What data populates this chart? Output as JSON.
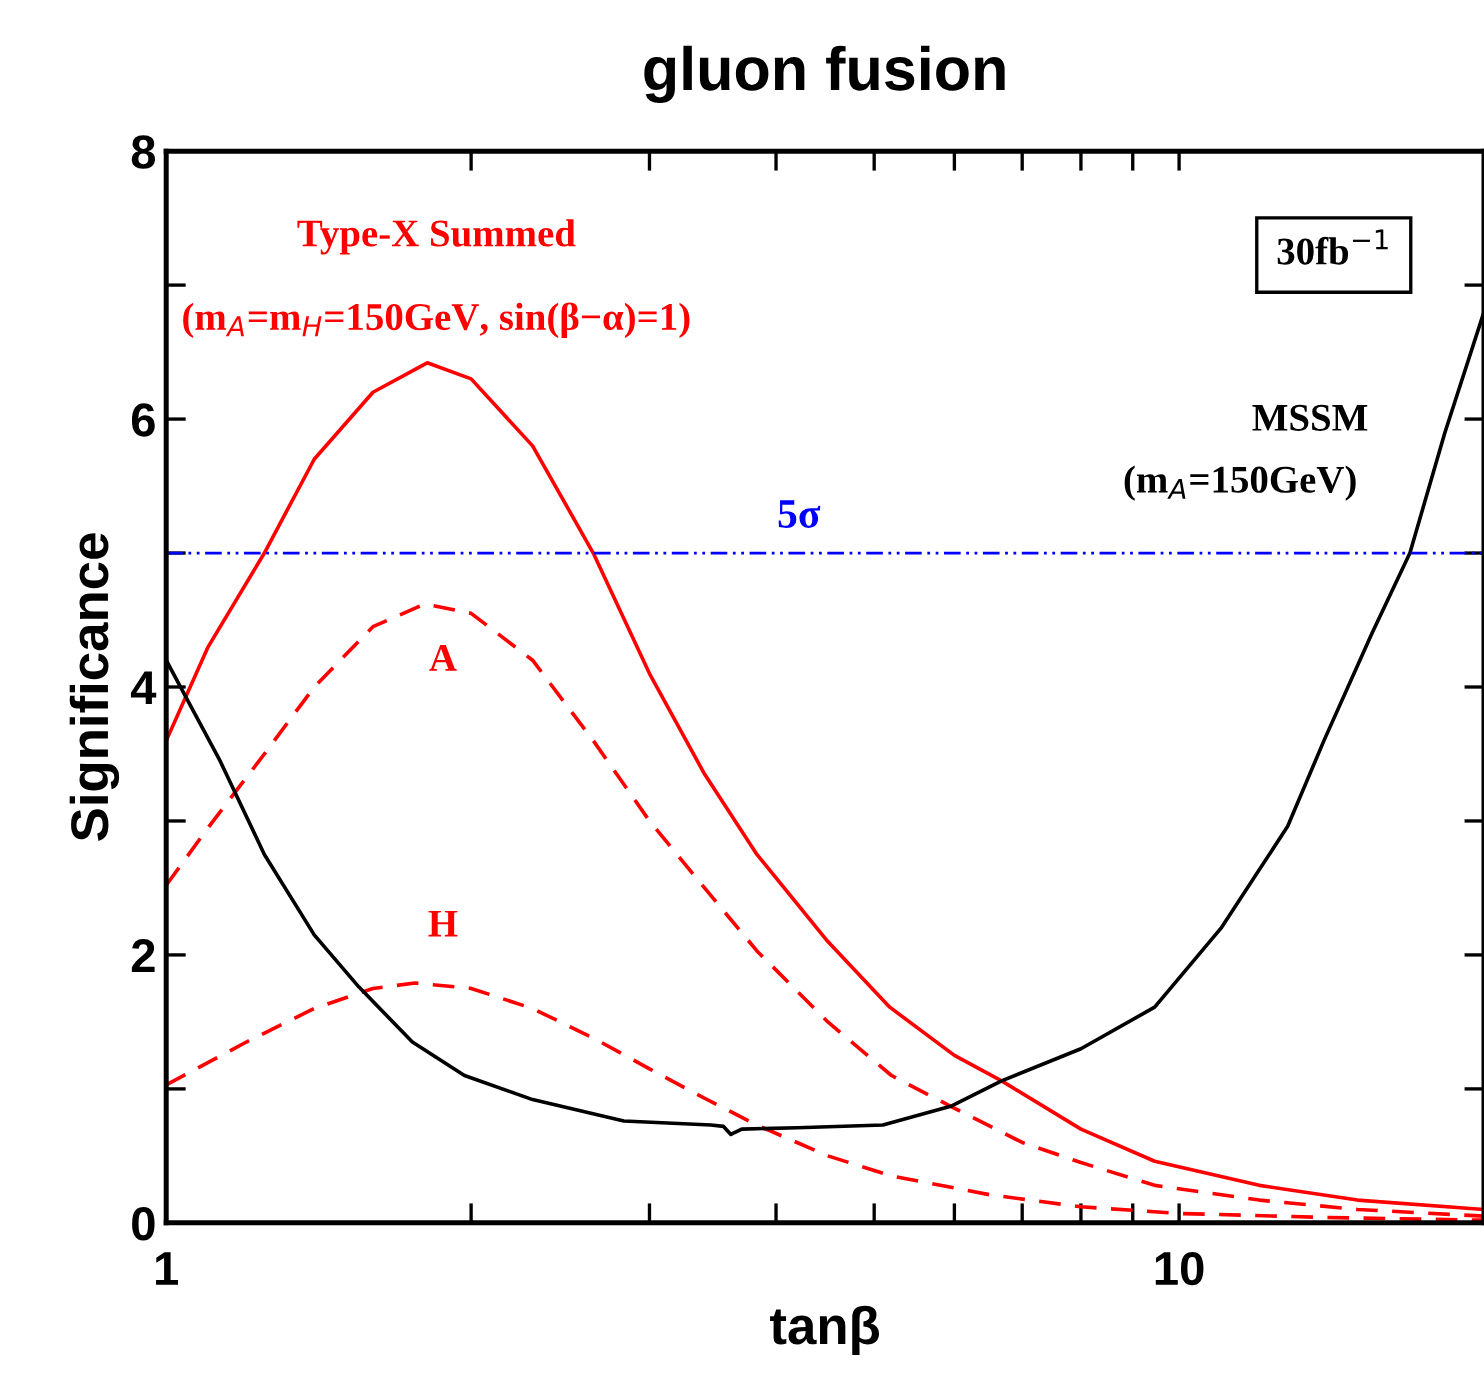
{
  "chart_data": {
    "type": "line",
    "title": "gluon fusion",
    "xlabel": "tanβ",
    "ylabel": "Significance",
    "log": "x",
    "xlim": [
      1,
      20
    ],
    "xticks": [
      1,
      {
        "value": 2,
        "label": null
      },
      {
        "value": 3,
        "label": null
      },
      {
        "value": 4,
        "label": null
      },
      {
        "value": 5,
        "label": null
      },
      {
        "value": 6,
        "label": null
      },
      {
        "value": 7,
        "label": null
      },
      {
        "value": 8,
        "label": null
      },
      {
        "value": 9,
        "label": null
      },
      10
    ],
    "ylim": [
      0,
      8
    ],
    "yticks": [
      0,
      {
        "value": 1,
        "label": null
      },
      2,
      {
        "value": 3,
        "label": null
      },
      4,
      {
        "value": 5,
        "label": null
      },
      6,
      {
        "value": 7,
        "label": null
      },
      8
    ],
    "grid": false,
    "legend": false,
    "marker": "none",
    "series": [
      {
        "color": "#ff0000",
        "line_style": "solid",
        "x": [
          1,
          1.1,
          1.25,
          1.4,
          1.6,
          1.81,
          2.0,
          2.3,
          2.64,
          3.0,
          3.4,
          3.83,
          4.5,
          5.18,
          6.0,
          6.68,
          8,
          9.46,
          12,
          15,
          20
        ],
        "values": [
          3.6,
          4.3,
          5.0,
          5.7,
          6.2,
          6.42,
          6.3,
          5.8,
          5.0,
          4.1,
          3.35,
          2.75,
          2.1,
          1.61,
          1.25,
          1.06,
          0.7,
          0.46,
          0.28,
          0.17,
          0.1
        ]
      },
      {
        "name": "A",
        "color": "#ff0000",
        "line_style": "dashed",
        "x": [
          1,
          1.1,
          1.25,
          1.4,
          1.6,
          1.8,
          2.0,
          2.3,
          2.64,
          3.0,
          3.4,
          3.83,
          4.5,
          5.2,
          5.95,
          7,
          8,
          9.46,
          12,
          15,
          20
        ],
        "values": [
          2.52,
          2.95,
          3.5,
          4.0,
          4.45,
          4.62,
          4.55,
          4.2,
          3.6,
          3.0,
          2.5,
          2.03,
          1.5,
          1.1,
          0.87,
          0.6,
          0.45,
          0.28,
          0.17,
          0.1,
          0.05
        ]
      },
      {
        "name": "H",
        "color": "#ff0000",
        "line_style": "dashed",
        "x": [
          1,
          1.2,
          1.4,
          1.6,
          1.76,
          2.0,
          2.3,
          2.64,
          3.0,
          3.4,
          3.83,
          4.5,
          5.2,
          6.5,
          8,
          10,
          14,
          20
        ],
        "values": [
          1.03,
          1.35,
          1.6,
          1.75,
          1.79,
          1.75,
          1.6,
          1.38,
          1.15,
          0.93,
          0.73,
          0.5,
          0.35,
          0.21,
          0.12,
          0.07,
          0.04,
          0.02
        ]
      },
      {
        "name": "MSSM",
        "color": "#000000",
        "line_style": "solid",
        "x": [
          1,
          1.05,
          1.13,
          1.25,
          1.4,
          1.55,
          1.75,
          1.97,
          2.3,
          2.83,
          3.45,
          3.55,
          3.61,
          3.7,
          4.2,
          5.1,
          5.95,
          6.68,
          8,
          9.46,
          11,
          12.8,
          13.9,
          15.5,
          16.9,
          18.3,
          20
        ],
        "values": [
          4.2,
          3.9,
          3.45,
          2.75,
          2.15,
          1.76,
          1.35,
          1.1,
          0.92,
          0.76,
          0.73,
          0.72,
          0.66,
          0.7,
          0.71,
          0.73,
          0.87,
          1.06,
          1.3,
          1.61,
          2.2,
          2.96,
          3.6,
          4.4,
          5.0,
          5.9,
          6.8
        ]
      }
    ],
    "ref_lines": [
      {
        "axis": "y",
        "value": 5,
        "label": "5σ",
        "color": "#0000ff",
        "line_style": "dashdot"
      }
    ],
    "annotations": [
      "Type-X Summed",
      "(m$_{A}$=m$_{H}$=150GeV, sin(β−α)=1)",
      "(m$_{A}$=150GeV)",
      "30fb$^{−1}$"
    ]
  }
}
